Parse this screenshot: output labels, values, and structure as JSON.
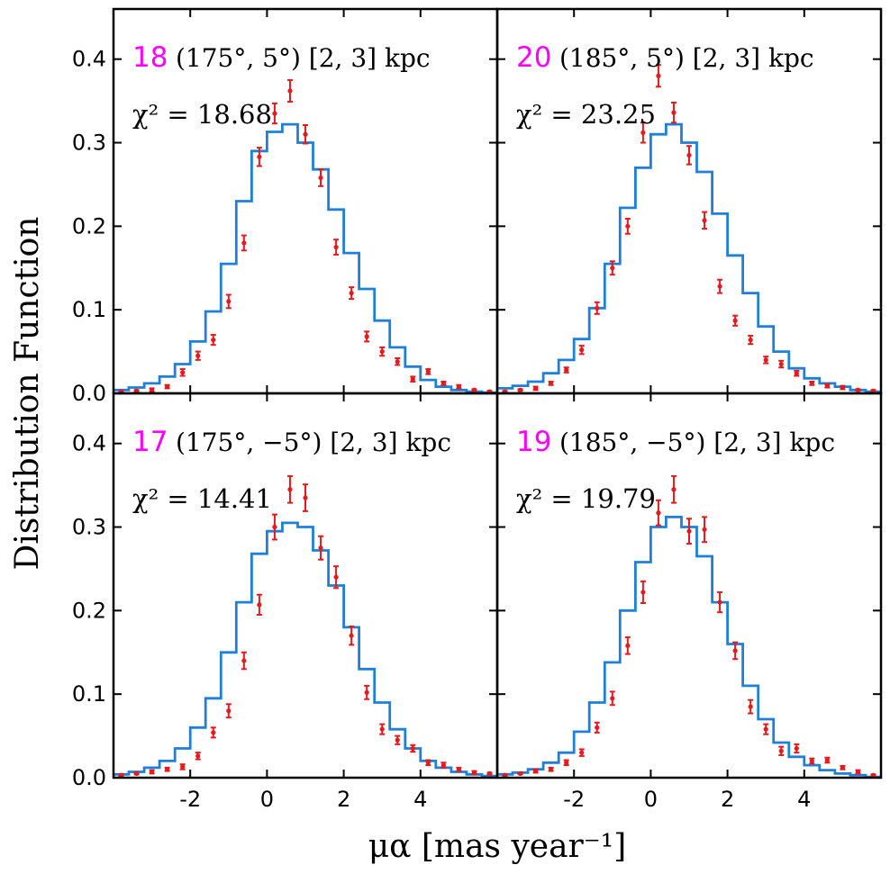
{
  "chart_data": {
    "type": "histogram-with-errorbars",
    "xlabel": "μα [mas year⁻¹]",
    "ylabel": "Distribution Function",
    "xlim": [
      -4,
      6
    ],
    "ylim": [
      0,
      0.46
    ],
    "xticks": [
      -2,
      0,
      2,
      4
    ],
    "xtick_labels": [
      "-2",
      "0",
      "2",
      "4"
    ],
    "yticks": [
      0.0,
      0.1,
      0.2,
      0.3,
      0.4
    ],
    "ytick_labels": [
      "0.0",
      "0.1",
      "0.2",
      "0.3",
      "0.4"
    ],
    "colors": {
      "model": "#1f7fd9",
      "data": "#e41a1c",
      "id": "#ff00ff"
    },
    "panels": [
      {
        "position": "top-left",
        "id": "18",
        "coord": "(175°, 5°)  [2, 3] kpc",
        "chi2": "χ² = 18.68",
        "model_edges": [
          -4.0,
          -3.6,
          -3.2,
          -2.8,
          -2.4,
          -2.0,
          -1.6,
          -1.2,
          -0.8,
          -0.4,
          0.0,
          0.4,
          0.8,
          1.2,
          1.6,
          2.0,
          2.4,
          2.8,
          3.2,
          3.6,
          4.0,
          4.4,
          4.8,
          5.2,
          5.6,
          6.0
        ],
        "model_values": [
          0.004,
          0.007,
          0.012,
          0.02,
          0.035,
          0.062,
          0.098,
          0.155,
          0.23,
          0.29,
          0.313,
          0.322,
          0.3,
          0.268,
          0.22,
          0.168,
          0.125,
          0.087,
          0.055,
          0.032,
          0.016,
          0.008,
          0.004,
          0.002,
          0.001
        ],
        "data_x": [
          -3.8,
          -3.4,
          -3.0,
          -2.6,
          -2.2,
          -1.8,
          -1.4,
          -1.0,
          -0.6,
          -0.2,
          0.2,
          0.6,
          1.0,
          1.4,
          1.8,
          2.2,
          2.6,
          3.0,
          3.4,
          3.8,
          4.2,
          4.6,
          5.0,
          5.4,
          5.8
        ],
        "data_y": [
          0.002,
          0.003,
          0.004,
          0.008,
          0.025,
          0.045,
          0.064,
          0.11,
          0.18,
          0.283,
          0.335,
          0.362,
          0.31,
          0.258,
          0.175,
          0.12,
          0.068,
          0.05,
          0.038,
          0.017,
          0.026,
          0.012,
          0.008,
          0.004,
          0.002
        ],
        "data_err": [
          0.001,
          0.001,
          0.002,
          0.002,
          0.004,
          0.005,
          0.006,
          0.008,
          0.009,
          0.011,
          0.012,
          0.013,
          0.011,
          0.01,
          0.009,
          0.007,
          0.006,
          0.005,
          0.004,
          0.003,
          0.003,
          0.002,
          0.002,
          0.001,
          0.001
        ]
      },
      {
        "position": "top-right",
        "id": "20",
        "coord": "(185°, 5°)  [2, 3] kpc",
        "chi2": "χ² = 23.25",
        "model_edges": [
          -4.0,
          -3.6,
          -3.2,
          -2.8,
          -2.4,
          -2.0,
          -1.6,
          -1.2,
          -0.8,
          -0.4,
          0.0,
          0.4,
          0.8,
          1.2,
          1.6,
          2.0,
          2.4,
          2.8,
          3.2,
          3.6,
          4.0,
          4.4,
          4.8,
          5.2,
          5.6,
          6.0
        ],
        "model_values": [
          0.006,
          0.009,
          0.014,
          0.024,
          0.04,
          0.065,
          0.102,
          0.155,
          0.222,
          0.27,
          0.31,
          0.322,
          0.3,
          0.265,
          0.215,
          0.165,
          0.12,
          0.08,
          0.05,
          0.03,
          0.018,
          0.012,
          0.008,
          0.004,
          0.002
        ],
        "data_x": [
          -3.8,
          -3.4,
          -3.0,
          -2.6,
          -2.2,
          -1.8,
          -1.4,
          -1.0,
          -0.6,
          -0.2,
          0.2,
          0.6,
          1.0,
          1.4,
          1.8,
          2.2,
          2.6,
          3.0,
          3.4,
          3.8,
          4.2,
          4.6,
          5.0,
          5.4,
          5.8
        ],
        "data_y": [
          0.002,
          0.004,
          0.006,
          0.012,
          0.028,
          0.052,
          0.102,
          0.15,
          0.2,
          0.312,
          0.38,
          0.336,
          0.285,
          0.207,
          0.128,
          0.087,
          0.064,
          0.04,
          0.035,
          0.024,
          0.012,
          0.009,
          0.007,
          0.004,
          0.003
        ],
        "data_err": [
          0.001,
          0.001,
          0.002,
          0.002,
          0.003,
          0.005,
          0.007,
          0.008,
          0.009,
          0.012,
          0.013,
          0.012,
          0.011,
          0.01,
          0.008,
          0.006,
          0.005,
          0.004,
          0.004,
          0.003,
          0.002,
          0.002,
          0.002,
          0.001,
          0.001
        ]
      },
      {
        "position": "bottom-left",
        "id": "17",
        "coord": "(175°, −5°)  [2, 3] kpc",
        "chi2": "χ² = 14.41",
        "model_edges": [
          -4.0,
          -3.6,
          -3.2,
          -2.8,
          -2.4,
          -2.0,
          -1.6,
          -1.2,
          -0.8,
          -0.4,
          0.0,
          0.4,
          0.8,
          1.2,
          1.6,
          2.0,
          2.4,
          2.8,
          3.2,
          3.6,
          4.0,
          4.4,
          4.8,
          5.2,
          5.6,
          6.0
        ],
        "model_values": [
          0.004,
          0.007,
          0.012,
          0.02,
          0.035,
          0.06,
          0.095,
          0.15,
          0.21,
          0.268,
          0.295,
          0.305,
          0.3,
          0.272,
          0.23,
          0.18,
          0.13,
          0.09,
          0.058,
          0.035,
          0.02,
          0.012,
          0.007,
          0.004,
          0.002
        ],
        "data_x": [
          -3.8,
          -3.4,
          -3.0,
          -2.6,
          -2.2,
          -1.8,
          -1.4,
          -1.0,
          -0.6,
          -0.2,
          0.2,
          0.6,
          1.0,
          1.4,
          1.8,
          2.2,
          2.6,
          3.0,
          3.4,
          3.8,
          4.2,
          4.6,
          5.0,
          5.4,
          5.8
        ],
        "data_y": [
          0.003,
          0.005,
          0.007,
          0.01,
          0.013,
          0.026,
          0.054,
          0.08,
          0.14,
          0.207,
          0.3,
          0.345,
          0.335,
          0.275,
          0.24,
          0.17,
          0.102,
          0.058,
          0.045,
          0.035,
          0.018,
          0.015,
          0.01,
          0.006,
          0.005
        ],
        "data_err": [
          0.001,
          0.001,
          0.002,
          0.002,
          0.003,
          0.004,
          0.006,
          0.008,
          0.01,
          0.012,
          0.015,
          0.016,
          0.016,
          0.014,
          0.013,
          0.011,
          0.008,
          0.006,
          0.005,
          0.004,
          0.003,
          0.003,
          0.002,
          0.002,
          0.001
        ]
      },
      {
        "position": "bottom-right",
        "id": "19",
        "coord": "(185°, −5°)  [2, 3] kpc",
        "chi2": "χ² = 19.79",
        "model_edges": [
          -4.0,
          -3.6,
          -3.2,
          -2.8,
          -2.4,
          -2.0,
          -1.6,
          -1.2,
          -0.8,
          -0.4,
          0.0,
          0.4,
          0.8,
          1.2,
          1.6,
          2.0,
          2.4,
          2.8,
          3.2,
          3.6,
          4.0,
          4.4,
          4.8,
          5.2,
          5.6,
          6.0
        ],
        "model_values": [
          0.004,
          0.006,
          0.01,
          0.018,
          0.03,
          0.055,
          0.09,
          0.138,
          0.2,
          0.258,
          0.3,
          0.312,
          0.3,
          0.265,
          0.21,
          0.16,
          0.11,
          0.07,
          0.042,
          0.025,
          0.015,
          0.009,
          0.005,
          0.003,
          0.001
        ],
        "data_x": [
          -3.8,
          -3.4,
          -3.0,
          -2.6,
          -2.2,
          -1.8,
          -1.4,
          -1.0,
          -0.6,
          -0.2,
          0.2,
          0.6,
          1.0,
          1.4,
          1.8,
          2.2,
          2.6,
          3.0,
          3.4,
          3.8,
          4.2,
          4.6,
          5.0,
          5.4,
          5.8
        ],
        "data_y": [
          0.003,
          0.005,
          0.008,
          0.01,
          0.018,
          0.03,
          0.06,
          0.095,
          0.158,
          0.222,
          0.317,
          0.345,
          0.295,
          0.297,
          0.21,
          0.152,
          0.085,
          0.058,
          0.032,
          0.035,
          0.02,
          0.021,
          0.012,
          0.007,
          0.003
        ],
        "data_err": [
          0.001,
          0.001,
          0.002,
          0.002,
          0.003,
          0.004,
          0.006,
          0.008,
          0.01,
          0.013,
          0.015,
          0.016,
          0.015,
          0.015,
          0.012,
          0.01,
          0.008,
          0.006,
          0.005,
          0.005,
          0.003,
          0.003,
          0.002,
          0.002,
          0.001
        ]
      }
    ]
  }
}
